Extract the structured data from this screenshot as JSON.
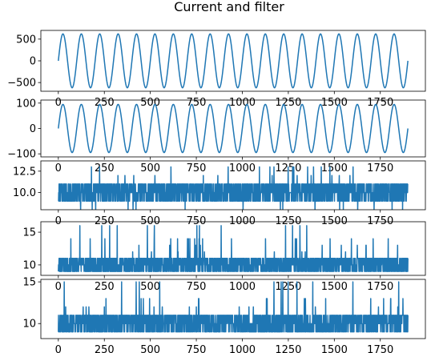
{
  "figure": {
    "title": "Current and filter"
  },
  "line_color": "#1f77b4",
  "chart_data": [
    {
      "type": "line",
      "signal": "sine",
      "x_range": [
        0,
        1900
      ],
      "amplitude": 620,
      "period": 100,
      "xlim": [
        -95,
        1995
      ],
      "ylim": [
        -700,
        700
      ],
      "xticks": [
        0,
        250,
        500,
        750,
        1000,
        1250,
        1500,
        1750
      ],
      "xtick_labels": [
        "0",
        "250",
        "500",
        "750",
        "1000",
        "1250",
        "1500",
        "1750"
      ],
      "yticks": [
        500,
        0,
        -500
      ],
      "ytick_labels": [
        "500",
        "0",
        "−500"
      ]
    },
    {
      "type": "line",
      "signal": "sine",
      "x_range": [
        0,
        1900
      ],
      "amplitude": 95,
      "period": 100,
      "xlim": [
        -95,
        1995
      ],
      "ylim": [
        -112,
        112
      ],
      "xticks": [
        0,
        250,
        500,
        750,
        1000,
        1250,
        1500,
        1750
      ],
      "xtick_labels": [
        "0",
        "250",
        "500",
        "750",
        "1000",
        "1250",
        "1500",
        "1750"
      ],
      "yticks": [
        100,
        0,
        -100
      ],
      "ytick_labels": [
        "100",
        "0",
        "−100"
      ]
    },
    {
      "type": "line",
      "signal": "noise",
      "x_range": [
        0,
        1900
      ],
      "base": 10,
      "ylim": [
        8.0,
        13.7
      ],
      "xlim": [
        -95,
        1995
      ],
      "levels": [
        9,
        10,
        11
      ],
      "spikes": [
        8,
        12,
        13
      ],
      "seed": 11,
      "xticks": [
        0,
        250,
        500,
        750,
        1000,
        1250,
        1500,
        1750
      ],
      "xtick_labels": [
        "0",
        "250",
        "500",
        "750",
        "1000",
        "1250",
        "1500",
        "1750"
      ],
      "yticks": [
        12.5,
        10.0
      ],
      "ytick_labels": [
        "12.5",
        "10.0"
      ]
    },
    {
      "type": "line",
      "signal": "noise",
      "x_range": [
        0,
        1900
      ],
      "base": 10,
      "ylim": [
        8.4,
        16.6
      ],
      "xlim": [
        -95,
        1995
      ],
      "levels": [
        9,
        10,
        11
      ],
      "spikes": [
        12,
        13,
        14,
        16
      ],
      "seed": 23,
      "xticks": [
        0,
        250,
        500,
        750,
        1000,
        1250,
        1500,
        1750
      ],
      "xtick_labels": [
        "0",
        "250",
        "500",
        "750",
        "1000",
        "1250",
        "1500",
        "1750"
      ],
      "yticks": [
        15,
        10
      ],
      "ytick_labels": [
        "15",
        "10"
      ]
    },
    {
      "type": "line",
      "signal": "noise",
      "x_range": [
        0,
        1900
      ],
      "base": 10,
      "ylim": [
        8.2,
        15.3
      ],
      "xlim": [
        -95,
        1995
      ],
      "levels": [
        9,
        10,
        11
      ],
      "spikes": [
        12,
        13,
        15
      ],
      "seed": 37,
      "xticks": [
        0,
        250,
        500,
        750,
        1000,
        1250,
        1500,
        1750
      ],
      "xtick_labels": [
        "0",
        "250",
        "500",
        "750",
        "1000",
        "1250",
        "1500",
        "1750"
      ],
      "yticks": [
        15,
        10
      ],
      "ytick_labels": [
        "15",
        "10"
      ]
    }
  ]
}
